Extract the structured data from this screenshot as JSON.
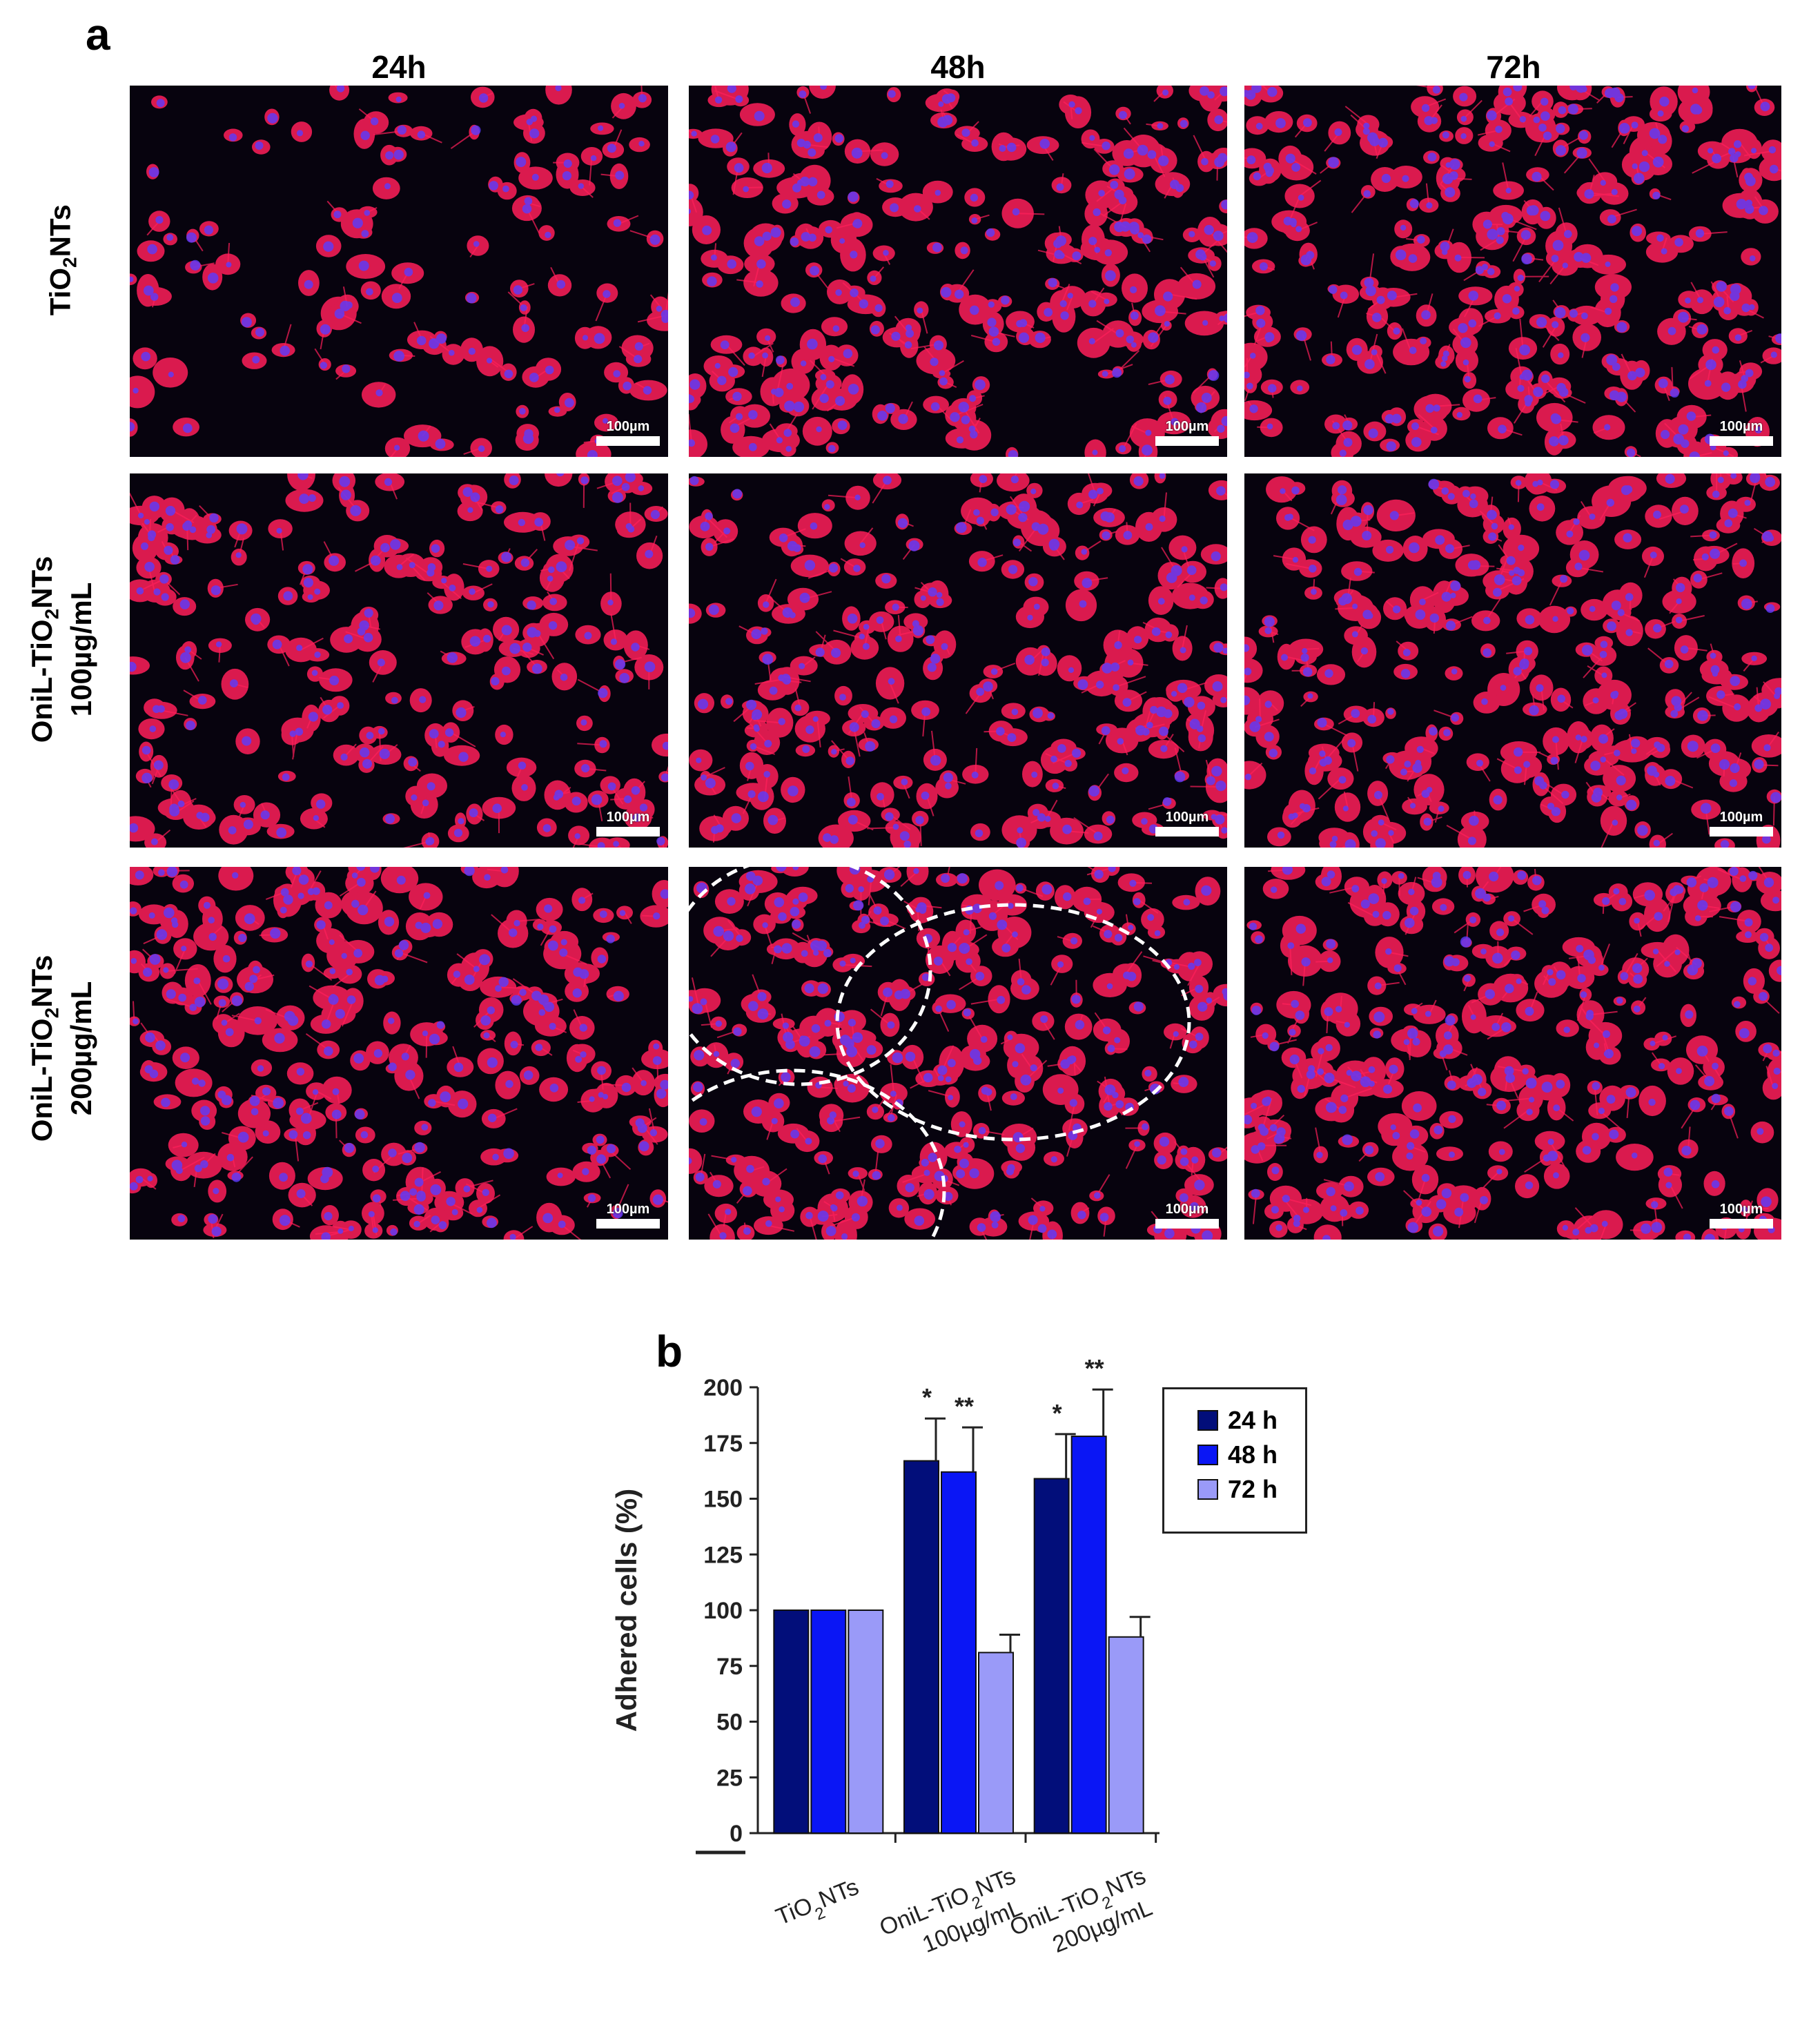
{
  "panel_a": {
    "letter": "a",
    "column_labels": [
      "24h",
      "48h",
      "72h"
    ],
    "row_labels": [
      {
        "line1_main": "TiO",
        "line1_sub": "2",
        "line1_tail": "NTs",
        "line2": ""
      },
      {
        "line1_main": "OniL-TiO",
        "line1_sub": "2",
        "line1_tail": "NTs",
        "line2": "100µg/mL"
      },
      {
        "line1_main": "OniL-TiO",
        "line1_sub": "2",
        "line1_tail": "NTs",
        "line2": "200µg/mL"
      }
    ],
    "scale_bar_label": "100µm",
    "colors": {
      "actin": "#ff1f5a",
      "nucleus": "#5a3cff",
      "background": "#07030e"
    }
  },
  "panel_b": {
    "letter": "b"
  },
  "chart_data": {
    "type": "bar",
    "title": "",
    "xlabel": "",
    "ylabel": "Adhered cells (%)",
    "ylim": [
      0,
      200
    ],
    "yticks": [
      0,
      25,
      50,
      75,
      100,
      125,
      150,
      175,
      200
    ],
    "grid": false,
    "legend_position": "top-right",
    "categories": [
      {
        "main": "TiO",
        "sub": "2",
        "tail": "NTs",
        "line2": ""
      },
      {
        "main": "OniL-TiO",
        "sub": "2",
        "tail": "NTs",
        "line2": "100µg/mL"
      },
      {
        "main": "OniL-TiO",
        "sub": "2",
        "tail": "NTs",
        "line2": "200µg/mL"
      }
    ],
    "series": [
      {
        "name": "24 h",
        "color": "#020e7a",
        "values": [
          100,
          167,
          159
        ],
        "errors": [
          0,
          19,
          20
        ],
        "stars": [
          "",
          "*",
          "*"
        ]
      },
      {
        "name": "48 h",
        "color": "#0a16f5",
        "values": [
          100,
          162,
          178
        ],
        "errors": [
          0,
          20,
          21
        ],
        "stars": [
          "",
          "**",
          "**"
        ]
      },
      {
        "name": "72 h",
        "color": "#9a9af8",
        "values": [
          100,
          81,
          88
        ],
        "errors": [
          0,
          8,
          9
        ],
        "stars": [
          "",
          "",
          ""
        ]
      }
    ]
  }
}
